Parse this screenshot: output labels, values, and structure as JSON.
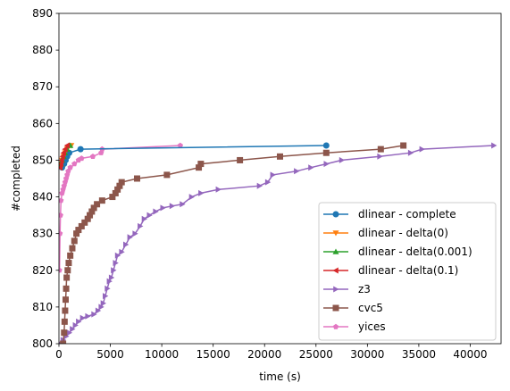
{
  "chart_data": {
    "type": "line",
    "xlabel": "time (s)",
    "ylabel": "#completed",
    "xlim": [
      0,
      43000
    ],
    "ylim": [
      800,
      890
    ],
    "xticks": [
      0,
      5000,
      10000,
      15000,
      20000,
      25000,
      30000,
      35000,
      40000
    ],
    "yticks": [
      800,
      810,
      820,
      830,
      840,
      850,
      860,
      870,
      880,
      890
    ],
    "grid": false,
    "legend_position": "lower-right",
    "series": [
      {
        "name": "z3",
        "color": "#9467bd",
        "marker": "triangle-right",
        "points": [
          [
            100,
            800
          ],
          [
            400,
            801
          ],
          [
            700,
            802
          ],
          [
            1000,
            803
          ],
          [
            1300,
            804
          ],
          [
            1600,
            805
          ],
          [
            1900,
            806
          ],
          [
            2300,
            807
          ],
          [
            2800,
            807.5
          ],
          [
            3400,
            808
          ],
          [
            3800,
            809
          ],
          [
            4100,
            810
          ],
          [
            4300,
            811
          ],
          [
            4500,
            813
          ],
          [
            4700,
            815
          ],
          [
            4900,
            817
          ],
          [
            5100,
            818
          ],
          [
            5300,
            820
          ],
          [
            5500,
            822
          ],
          [
            5700,
            824
          ],
          [
            6100,
            825
          ],
          [
            6500,
            827
          ],
          [
            6900,
            829
          ],
          [
            7400,
            830
          ],
          [
            7900,
            832
          ],
          [
            8300,
            834
          ],
          [
            8800,
            835
          ],
          [
            9400,
            836
          ],
          [
            10100,
            837
          ],
          [
            11000,
            837.5
          ],
          [
            12000,
            838
          ],
          [
            12900,
            840
          ],
          [
            13800,
            841
          ],
          [
            15500,
            842
          ],
          [
            19500,
            843
          ],
          [
            20300,
            844
          ],
          [
            20800,
            846
          ],
          [
            23100,
            847
          ],
          [
            24500,
            848
          ],
          [
            26000,
            849
          ],
          [
            27500,
            850
          ],
          [
            31200,
            851
          ],
          [
            34200,
            852
          ],
          [
            35300,
            853
          ],
          [
            42300,
            854
          ]
        ]
      },
      {
        "name": "cvc5",
        "color": "#8c564b",
        "marker": "square",
        "points": [
          [
            400,
            800
          ],
          [
            500,
            803
          ],
          [
            550,
            806
          ],
          [
            600,
            809
          ],
          [
            650,
            812
          ],
          [
            700,
            815
          ],
          [
            750,
            818
          ],
          [
            850,
            820
          ],
          [
            950,
            822
          ],
          [
            1100,
            824
          ],
          [
            1300,
            826
          ],
          [
            1500,
            828
          ],
          [
            1700,
            830
          ],
          [
            1900,
            831
          ],
          [
            2200,
            832
          ],
          [
            2500,
            833
          ],
          [
            2800,
            834
          ],
          [
            3000,
            835
          ],
          [
            3200,
            836
          ],
          [
            3400,
            837
          ],
          [
            3700,
            838
          ],
          [
            4200,
            839
          ],
          [
            5200,
            840
          ],
          [
            5500,
            841
          ],
          [
            5700,
            842
          ],
          [
            5900,
            843
          ],
          [
            6100,
            844
          ],
          [
            7600,
            845
          ],
          [
            10500,
            846
          ],
          [
            13600,
            848
          ],
          [
            13800,
            849
          ],
          [
            17600,
            850
          ],
          [
            21500,
            851
          ],
          [
            26000,
            852
          ],
          [
            31300,
            853
          ],
          [
            33500,
            854
          ]
        ]
      },
      {
        "name": "yices",
        "color": "#e377c2",
        "marker": "pentagon",
        "points": [
          [
            50,
            820
          ],
          [
            100,
            830
          ],
          [
            150,
            835
          ],
          [
            200,
            839
          ],
          [
            300,
            841
          ],
          [
            400,
            842
          ],
          [
            500,
            843
          ],
          [
            600,
            844
          ],
          [
            700,
            845
          ],
          [
            800,
            846
          ],
          [
            900,
            847
          ],
          [
            1100,
            848
          ],
          [
            1500,
            849
          ],
          [
            1900,
            850
          ],
          [
            2200,
            850.5
          ],
          [
            3300,
            851
          ],
          [
            4100,
            852
          ],
          [
            4200,
            853
          ],
          [
            11800,
            854
          ]
        ]
      },
      {
        "name": "dlinear - complete",
        "color": "#1f77b4",
        "marker": "circle",
        "points": [
          [
            300,
            848
          ],
          [
            500,
            849
          ],
          [
            650,
            850
          ],
          [
            800,
            851
          ],
          [
            1000,
            852
          ],
          [
            2100,
            853
          ],
          [
            26000,
            854
          ]
        ]
      },
      {
        "name": "dlinear - delta(0)",
        "color": "#ff7f0e",
        "marker": "triangle-down",
        "points": [
          [
            200,
            849
          ],
          [
            300,
            850
          ],
          [
            450,
            851
          ],
          [
            600,
            852
          ],
          [
            800,
            853
          ],
          [
            1200,
            854
          ]
        ]
      },
      {
        "name": "dlinear - delta(0.001)",
        "color": "#2ca02c",
        "marker": "triangle-up",
        "points": [
          [
            200,
            849
          ],
          [
            300,
            850
          ],
          [
            450,
            851
          ],
          [
            600,
            852
          ],
          [
            800,
            853
          ],
          [
            1100,
            854
          ]
        ]
      },
      {
        "name": "dlinear - delta(0.1)",
        "color": "#d62728",
        "marker": "triangle-left",
        "points": [
          [
            100,
            848
          ],
          [
            180,
            849
          ],
          [
            250,
            850
          ],
          [
            350,
            851
          ],
          [
            450,
            852
          ],
          [
            600,
            853
          ],
          [
            800,
            854
          ]
        ]
      }
    ],
    "legend_order": [
      "dlinear - complete",
      "dlinear - delta(0)",
      "dlinear - delta(0.001)",
      "dlinear - delta(0.1)",
      "z3",
      "cvc5",
      "yices"
    ]
  }
}
